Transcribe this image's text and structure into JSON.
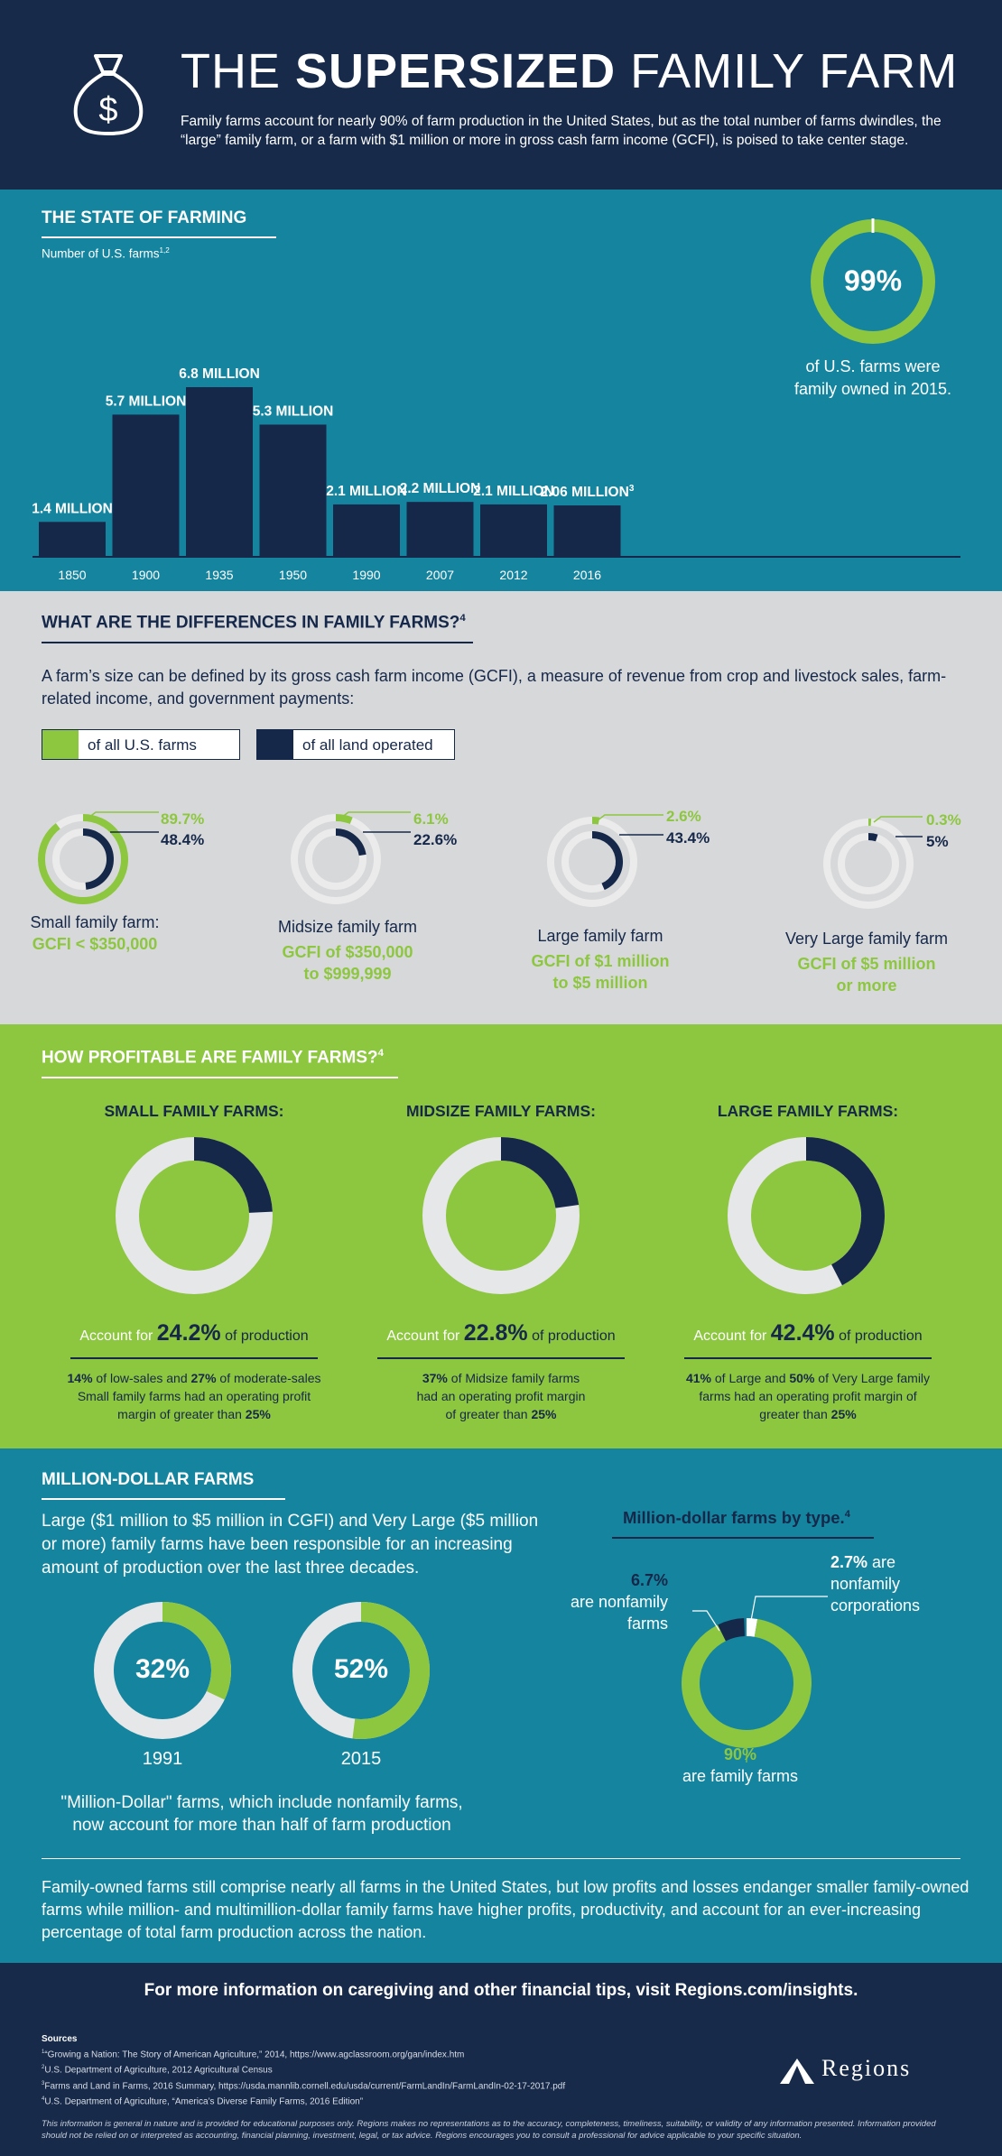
{
  "header": {
    "title_prefix": "THE",
    "title_highlight": "SUPERSIZED",
    "title_suffix": "FAMILY FARM",
    "intro": "Family farms account for nearly 90% of farm production in the United States, but as the total number of farms dwindles, the “large” family farm, or a farm with $1 million or more in gross cash farm income (GCFI), is poised to take center stage.",
    "icon": "money-bag-icon"
  },
  "state": {
    "title": "THE STATE OF FARMING",
    "subtitle": "Number of U.S. farms",
    "subtitle_sup": "1,2",
    "family_pct": "99%",
    "family_pct_value": 99,
    "family_text_1": "of U.S. farms were",
    "family_text_2": "family owned in 2015."
  },
  "chart_data": [
    {
      "type": "bar",
      "title": "",
      "ylabel": "Number of U.S. farms",
      "categories": [
        "1850",
        "1900",
        "1935",
        "1950",
        "1990",
        "2007",
        "2012",
        "2016"
      ],
      "values": [
        1.4,
        5.7,
        6.8,
        5.3,
        2.1,
        2.2,
        2.1,
        2.06
      ],
      "labels": [
        "1.4 MILLION",
        "5.7 MILLION",
        "6.8 MILLION",
        "5.3 MILLION",
        "2.1 MILLION",
        "2.2 MILLION",
        "2.1 MILLION",
        "2.06 MILLION"
      ],
      "label_sup": [
        "",
        "",
        "",
        "",
        "",
        "",
        "",
        "3"
      ],
      "unit": "million",
      "ylim": [
        0,
        6.8
      ]
    },
    {
      "type": "pie",
      "title": "Million-dollar farms by type.",
      "title_sup": "4",
      "slices": [
        {
          "pct": 90,
          "value_label": "90%",
          "label": "are family farms",
          "color": "#8dc63f"
        },
        {
          "pct": 6.7,
          "value_label": "6.7%",
          "label": "are nonfamily farms",
          "color": "#16284a"
        },
        {
          "pct": 2.7,
          "value_label": "2.7%",
          "label": "are nonfamily corporations",
          "color": "#ffffff"
        }
      ]
    }
  ],
  "diff": {
    "title": "WHAT ARE THE DIFFERENCES IN FAMILY FARMS?",
    "title_sup": "4",
    "desc": "A farm’s size can be defined by its gross cash farm income (GCFI), a measure of revenue from crop and livestock sales, farm-related income, and government payments:",
    "legend_farms": "of all U.S. farms",
    "legend_land": "of all land operated",
    "colors": {
      "farms": "#8dc63f",
      "land": "#16284a"
    },
    "items": [
      {
        "farms_pct": 89.7,
        "land_pct": 48.4,
        "farms_label": "89.7%",
        "land_label": "48.4%",
        "name": "Small family farm:",
        "gcfi_1": "GCFI < $350,000",
        "gcfi_2": ""
      },
      {
        "farms_pct": 6.1,
        "land_pct": 22.6,
        "farms_label": "6.1%",
        "land_label": "22.6%",
        "name": "Midsize family farm",
        "gcfi_1": "GCFI of $350,000",
        "gcfi_2": "to $999,999"
      },
      {
        "farms_pct": 2.6,
        "land_pct": 43.4,
        "farms_label": "2.6%",
        "land_label": "43.4%",
        "name": "Large family farm",
        "gcfi_1": "GCFI of $1 million",
        "gcfi_2": "to $5 million"
      },
      {
        "farms_pct": 0.3,
        "land_pct": 5,
        "farms_label": "0.3%",
        "land_label": "5%",
        "name": "Very Large family farm",
        "gcfi_1": "GCFI of $5 million",
        "gcfi_2": "or more"
      }
    ]
  },
  "profit": {
    "title": "HOW PROFITABLE ARE FAMILY FARMS?",
    "title_sup": "4",
    "account_for": "Account for",
    "of_production": "of production",
    "items": [
      {
        "title": "SMALL FAMILY FARMS:",
        "pct": 24.2,
        "pct_label": "24.2%",
        "note_1_a": "14%",
        "note_1_b": " of low-sales and ",
        "note_1_c": "27%",
        "note_1_d": " of moderate-sales",
        "note_2": "Small family farms had an operating profit",
        "note_3_a": "margin of greater than ",
        "note_3_b": "25%"
      },
      {
        "title": "MIDSIZE FAMILY FARMS:",
        "pct": 22.8,
        "pct_label": "22.8%",
        "note_1_a": "37%",
        "note_1_b": " of Midsize family farms",
        "note_1_c": "",
        "note_1_d": "",
        "note_2": "had an operating profit margin",
        "note_3_a": "of greater than ",
        "note_3_b": "25%"
      },
      {
        "title": "LARGE FAMILY FARMS:",
        "pct": 42.4,
        "pct_label": "42.4%",
        "note_1_a": "41%",
        "note_1_b": " of Large and ",
        "note_1_c": "50%",
        "note_1_d": " of Very Large family",
        "note_2": "farms had an operating profit margin of",
        "note_3_a": "greater than ",
        "note_3_b": "25%"
      }
    ]
  },
  "million": {
    "title": "MILLION-DOLLAR FARMS",
    "text_1": "Large ($1 million to $5 million in CGFI) and Very Large ($5 million",
    "text_2": "or more) family farms have been responsible for an increasing",
    "text_3": "amount of production over the last three decades.",
    "years": [
      {
        "year": "1991",
        "pct": 32,
        "pct_label": "32%"
      },
      {
        "year": "2015",
        "pct": 52,
        "pct_label": "52%"
      }
    ],
    "note_1": "\"Million-Dollar\" farms, which include nonfamily farms,",
    "note_2": "now account for more than half of farm production",
    "pie_title": "Million-dollar farms by type.",
    "pie_title_sup": "4",
    "lbl_nonfamily_pct": "6.7%",
    "lbl_nonfamily_1": "are nonfamily",
    "lbl_nonfamily_2": "farms",
    "lbl_corp_pct": "2.7%",
    "lbl_corp_1": " are",
    "lbl_corp_2": "nonfamily",
    "lbl_corp_3": "corporations",
    "lbl_family_pct": "90%",
    "lbl_family": "are family farms",
    "summary": "Family-owned farms still comprise nearly all farms in the United States, but low profits and losses endanger smaller family-owned farms while million- and multimillion-dollar family farms have higher profits, productivity, and account for an ever-increasing percentage of total farm production across the nation."
  },
  "footer": {
    "more_info": "For more information on caregiving and other financial tips, visit Regions.com/insights.",
    "sources_title": "Sources",
    "sources": [
      {
        "n": "1",
        "t": "“Growing a Nation: The Story of American Agriculture,” 2014, https://www.agclassroom.org/gan/index.htm"
      },
      {
        "n": "2",
        "t": "U.S. Department of Agriculture, 2012 Agricultural Census"
      },
      {
        "n": "3",
        "t": "Farms and Land in Farms, 2016 Summary, https://usda.mannlib.cornell.edu/usda/current/FarmLandIn/FarmLandIn-02-17-2017.pdf"
      },
      {
        "n": "4",
        "t": "U.S. Department of Agriculture, “America’s Diverse Family Farms, 2016 Edition”"
      }
    ],
    "disclaimer": "This information is general in nature and is provided for educational purposes only. Regions makes no representations as to the accuracy, completeness, timeliness, suitability, or validity of any information presented. Information provided should not be relied on or interpreted as accounting, financial planning, investment, legal, or tax advice. Regions encourages you to consult a professional for advice applicable to your specific situation.",
    "brand": "Regions",
    "brand_icon": "regions-pyramid-logo"
  },
  "colors": {
    "navy": "#16284a",
    "teal": "#15859f",
    "green": "#8dc63f",
    "grey": "#d7d8da",
    "light_ring": "#e6e7e8"
  }
}
